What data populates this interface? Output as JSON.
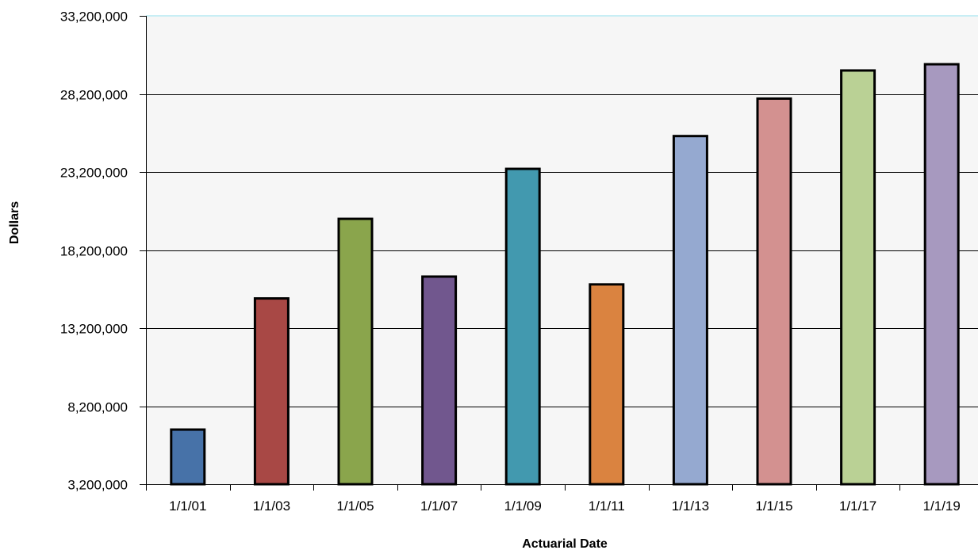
{
  "chart_data": {
    "type": "bar",
    "title": "",
    "xlabel": "Actuarial Date",
    "ylabel": "Dollars",
    "categories": [
      "1/1/01",
      "1/1/03",
      "1/1/05",
      "1/1/07",
      "1/1/09",
      "1/1/11",
      "1/1/13",
      "1/1/15",
      "1/1/17",
      "1/1/19"
    ],
    "values": [
      6700000,
      15100000,
      20200000,
      16500000,
      23400000,
      16000000,
      25500000,
      27900000,
      29700000,
      30100000
    ],
    "ylim": [
      3200000,
      33200000
    ],
    "yticks": [
      3200000,
      8200000,
      13200000,
      18200000,
      23200000,
      28200000,
      33200000
    ],
    "ytick_labels": [
      "3,200,000",
      "8,200,000",
      "13,200,000",
      "18,200,000",
      "23,200,000",
      "28,200,000",
      "33,200,000"
    ],
    "grid": "horizontal",
    "colors": [
      "#4772A8",
      "#A84845",
      "#8AA54C",
      "#71578E",
      "#4299AF",
      "#DA8340",
      "#95A9D0",
      "#D39190",
      "#BAD195",
      "#A799BF"
    ]
  }
}
